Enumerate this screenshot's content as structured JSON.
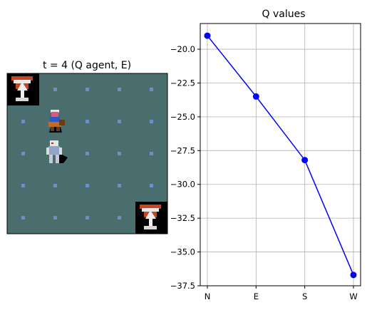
{
  "grid_panel": {
    "title": "t = 4 (Q agent, E)",
    "rows": 5,
    "cols": 5,
    "background_color": "#4a6e6e",
    "dot_color": "#6e8fc4",
    "sprites": [
      {
        "name": "goal-statue-icon",
        "row": 0,
        "col": 0
      },
      {
        "name": "goal-statue-icon",
        "row": 4,
        "col": 4
      },
      {
        "name": "agent-warrior-icon",
        "row": 1,
        "col": 1
      },
      {
        "name": "ghost-enemy-icon",
        "row": 2,
        "col": 1
      }
    ]
  },
  "chart_data": {
    "type": "line",
    "title": "Q values",
    "categories": [
      "N",
      "E",
      "S",
      "W"
    ],
    "series": [
      {
        "values": [
          -19.0,
          -23.5,
          -28.2,
          -36.7
        ],
        "color": "#0000ff"
      }
    ],
    "ylim": [
      -37.5,
      -18.1
    ],
    "yticks": [
      -20.0,
      -22.5,
      -25.0,
      -27.5,
      -30.0,
      -32.5,
      -35.0,
      -37.5
    ],
    "ytick_labels": [
      "−20.0",
      "−22.5",
      "−25.0",
      "−27.5",
      "−30.0",
      "−32.5",
      "−35.0",
      "−37.5"
    ],
    "xlabel": "",
    "ylabel": "",
    "grid": true
  }
}
